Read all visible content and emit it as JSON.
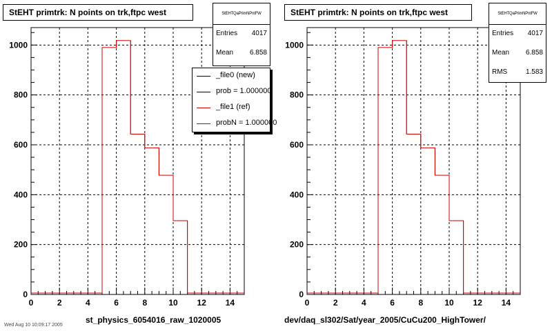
{
  "chart_data": [
    {
      "type": "histogram",
      "title": "StEHT primtrk: N points on trk,ftpc west",
      "xlabel": "st_physics_6054016_raw_1020005",
      "ylabel": "",
      "xlim": [
        0,
        15
      ],
      "ylim": [
        0,
        1070
      ],
      "xticks": [
        0,
        2,
        4,
        6,
        8,
        10,
        12,
        14
      ],
      "yticks": [
        0,
        200,
        400,
        600,
        800,
        1000
      ],
      "grid": true,
      "bins": {
        "edges": [
          0,
          1,
          2,
          3,
          4,
          5,
          6,
          7,
          8,
          9,
          10,
          11,
          12,
          13,
          14,
          15
        ],
        "counts": [
          0,
          0,
          0,
          0,
          0,
          990,
          1018,
          643,
          588,
          478,
          296,
          0,
          0,
          0,
          0
        ]
      },
      "line_color": "#cc0000",
      "stats": {
        "name": "StEHTQaPrimNPntFW",
        "rows": [
          {
            "label": "Entries",
            "value": "4017"
          },
          {
            "label": "Mean",
            "value": "6.858"
          }
        ]
      },
      "legend": {
        "position": "top-right",
        "entries": [
          {
            "label": "_file0 (new)",
            "color": "#000000"
          },
          {
            "label": "prob = 1.000000",
            "color": "#000000"
          },
          {
            "label": "_file1 (ref)",
            "color": "#cc0000"
          },
          {
            "label": "probN = 1.000000",
            "color": "#cc0000"
          }
        ]
      }
    },
    {
      "type": "histogram",
      "title": "StEHT primtrk: N points on trk,ftpc west",
      "xlabel": "dev/daq_sl302/Sat/year_2005/CuCu200_HighTower/",
      "ylabel": "",
      "xlim": [
        0,
        15
      ],
      "ylim": [
        0,
        1070
      ],
      "xticks": [
        0,
        2,
        4,
        6,
        8,
        10,
        12,
        14
      ],
      "yticks": [
        0,
        200,
        400,
        600,
        800,
        1000
      ],
      "grid": true,
      "bins": {
        "edges": [
          0,
          1,
          2,
          3,
          4,
          5,
          6,
          7,
          8,
          9,
          10,
          11,
          12,
          13,
          14,
          15
        ],
        "counts": [
          0,
          0,
          0,
          0,
          0,
          990,
          1018,
          643,
          588,
          478,
          296,
          0,
          0,
          0,
          0
        ]
      },
      "line_color": "#cc0000",
      "stats": {
        "name": "StEHTQaPrimNPntFW",
        "rows": [
          {
            "label": "Entries",
            "value": "4017"
          },
          {
            "label": "Mean",
            "value": "6.858"
          },
          {
            "label": "RMS",
            "value": "1.583"
          }
        ]
      }
    }
  ],
  "footer": "Wed Aug 10 10:09:17 2005"
}
